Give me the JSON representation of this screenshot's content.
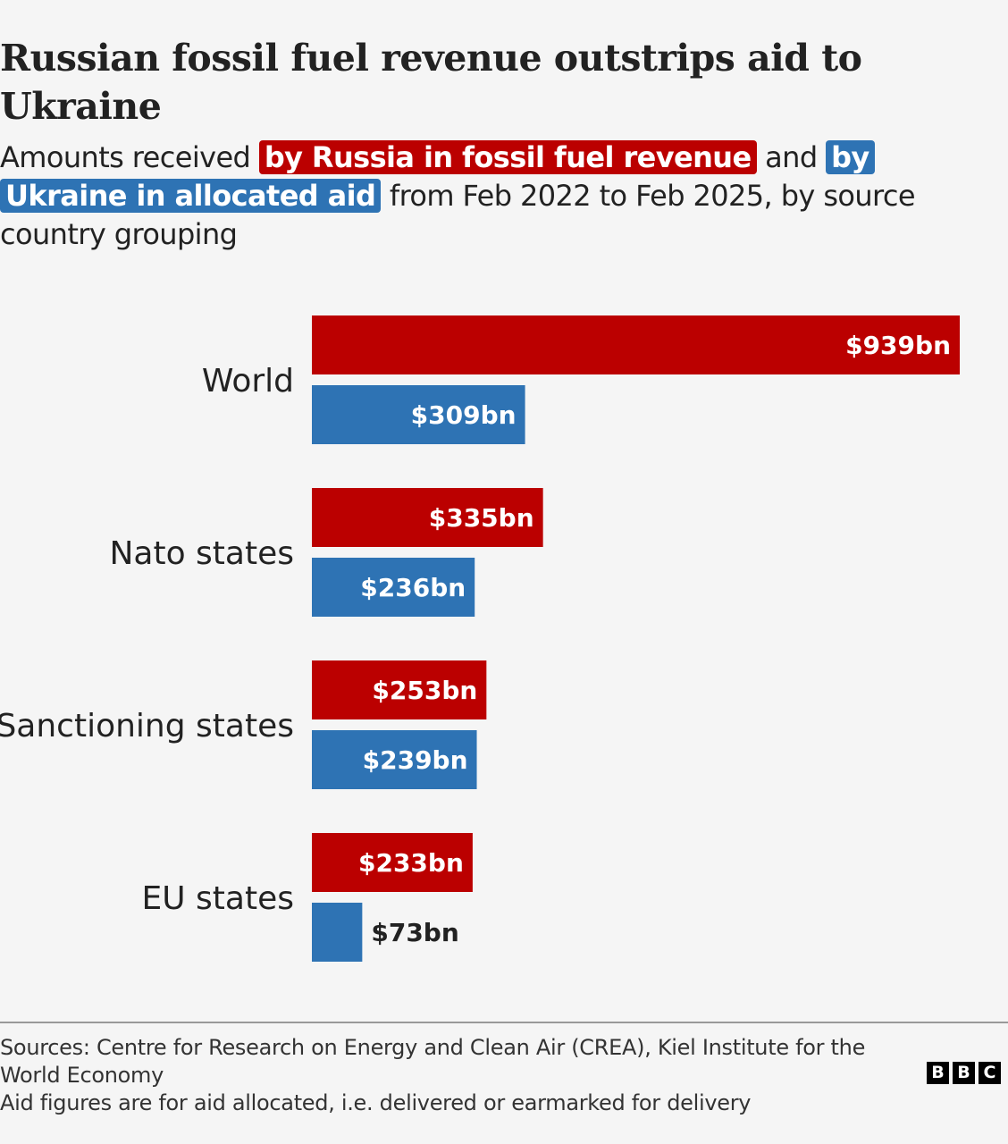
{
  "title": "Russian fossil fuel revenue outstrips aid to Ukraine",
  "subtitle": {
    "prefix": "Amounts received",
    "russia_phrase": "by Russia in fossil fuel revenue",
    "middle": "and",
    "ukraine_phrase": "by Ukraine in allocated aid",
    "suffix": "from Feb 2022 to Feb 2025, by source country grouping"
  },
  "colors": {
    "russia": "#bb0000",
    "ukraine": "#2e73b4",
    "background": "#f5f5f5",
    "text": "#222222"
  },
  "chart_data": {
    "type": "bar",
    "orientation": "horizontal",
    "categories": [
      "World",
      "Nato states",
      "Sanctioning states",
      "EU states"
    ],
    "series": [
      {
        "key": "russia",
        "values": [
          939,
          335,
          253,
          233
        ],
        "labels": [
          "$939bn",
          "$335bn",
          "$253bn",
          "$233bn"
        ]
      },
      {
        "key": "ukraine",
        "values": [
          309,
          236,
          239,
          73
        ],
        "labels": [
          "$309bn",
          "$236bn",
          "$239bn",
          "$73bn"
        ]
      }
    ],
    "xlim": [
      0,
      939
    ],
    "unit": "$bn",
    "grid": false,
    "legend": "inline in subtitle"
  },
  "footer": {
    "sources": "Sources: Centre for Research on Energy and Clean Air (CREA), Kiel Institute for the World Economy",
    "note": "Aid figures are for aid allocated, i.e. delivered or earmarked for delivery",
    "logo_letters": [
      "B",
      "B",
      "C"
    ]
  }
}
